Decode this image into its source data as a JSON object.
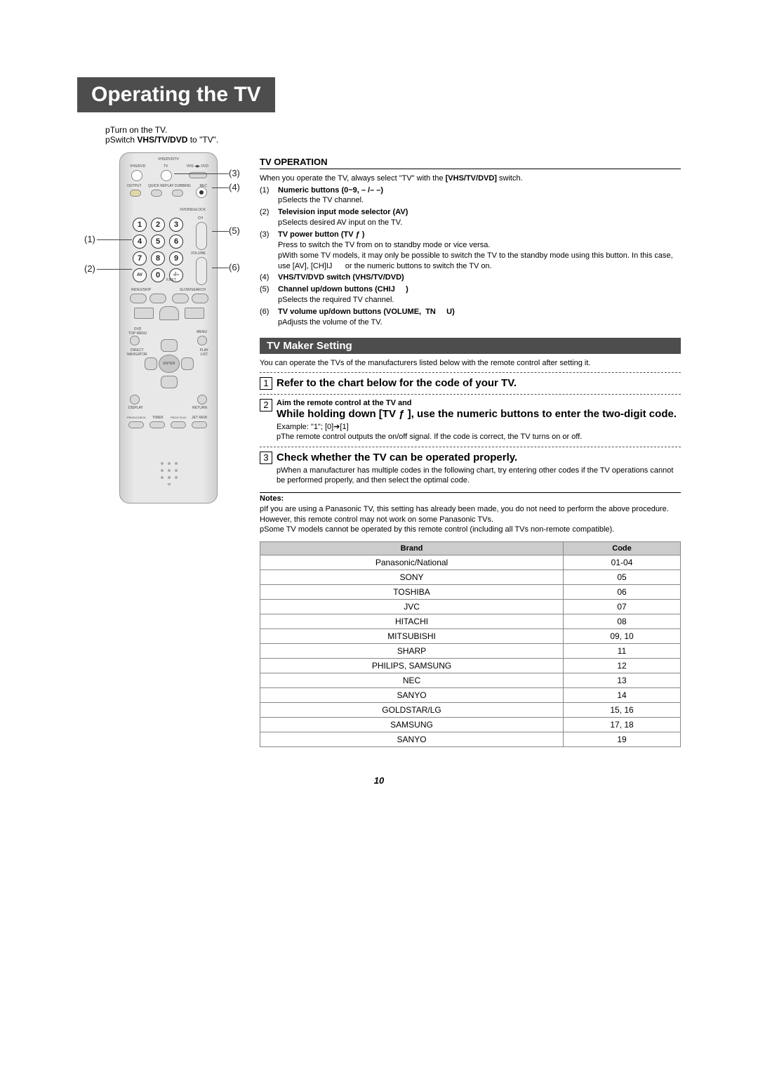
{
  "title": "Operating the TV",
  "intro": [
    "pTurn on the TV.",
    "pSwitch VHS/TV/DVD to \"TV\"."
  ],
  "introBold": "VHS/TV/DVD",
  "remote": {
    "topLabel": "VHS/DVD/TV",
    "vhsdvd": "VHS/DVD",
    "tv": "TV",
    "vhsdvd2": "VHS ◀▶ DVD",
    "output": "OUTPUT",
    "quick": "QUICK REPLAY",
    "dubbing": "DUBBING",
    "rec": "REC",
    "ch": "CH",
    "volume": "VOLUME",
    "fret": "F.RET",
    "vcrlock": "DVD/NDx/LOCK",
    "indexskip": "INDEX/SKIP",
    "slowsearch": "SLOW/SEARCH",
    "topmenu": "DVD\nTOP MENU",
    "menu": "MENU",
    "direct": "DIRECT\nNAVIGATOR",
    "playlist": "PLAY\nLIST",
    "enter": "ENTER",
    "display": "DISPLAY",
    "return": "RETURN",
    "progcheck": "PROG/CHECK",
    "timer": "TIMER",
    "progplay": "PROG PLAY",
    "jetrew": "JET REW",
    "keys": [
      "1",
      "2",
      "3",
      "4",
      "5",
      "6",
      "7",
      "8",
      "9",
      "AV",
      "0",
      "-/--"
    ]
  },
  "callouts": {
    "left1": "(1)",
    "left2": "(2)",
    "right3": "(3)",
    "right4": "(4)",
    "right5": "(5)",
    "right6": "(6)"
  },
  "tvOperation": {
    "heading": "TV OPERATION",
    "lead": "When you operate the TV, always select \"TV\" with the [VHS/TV/DVD] switch.",
    "items": [
      {
        "n": "(1)",
        "title": "Numeric buttons (0~9, – /– –)",
        "sub": "pSelects the TV channel."
      },
      {
        "n": "(2)",
        "title": "Television input mode selector (AV)",
        "sub": "pSelects desired AV input on the TV."
      },
      {
        "n": "(3)",
        "title": "TV power button (TV ƒ )",
        "sub": "  Press to switch the TV from on to standby mode or vice versa.",
        "extra": "pWith some TV models, it may only be possible to switch the TV to the standby mode using this button. In this case, use [AV], [CH]IJ      or the numeric buttons to switch the TV on."
      },
      {
        "n": "(4)",
        "title": "VHS/TV/DVD switch (VHS/TV/DVD)"
      },
      {
        "n": "(5)",
        "title": "Channel up/down buttons (CHIJ     )",
        "sub": "pSelects the required TV channel."
      },
      {
        "n": "(6)",
        "title": "TV volume up/down buttons (VOLUME,  TN     U)",
        "sub": "pAdjusts the volume of the TV."
      }
    ]
  },
  "maker": {
    "heading": "TV Maker Setting",
    "lead": "You can operate the TVs of the manufacturers listed below with the remote control after setting it.",
    "steps": [
      {
        "n": "1",
        "head": "Refer to the chart below for the code of your TV."
      },
      {
        "n": "2",
        "headSmall": "Aim the remote control at the TV and",
        "head2": "While holding down [TV ƒ ], use the numeric buttons to enter the two-digit code.",
        "body": "Example: \"1\"; [0]➔[1]",
        "body2": "pThe remote control outputs the on/off signal. If the code is correct, the TV turns on or off."
      },
      {
        "n": "3",
        "head": "Check whether the TV can be operated properly.",
        "body": "pWhen a manufacturer has multiple codes in the following chart, try entering other codes if the TV operations cannot be performed properly, and then select the optimal code."
      }
    ],
    "notesHead": "Notes:",
    "notes": [
      "pIf you are using a Panasonic TV, this setting has already been made, you do not need to perform the above procedure. However, this remote control may not work on some Panasonic TVs.",
      "pSome TV models cannot be operated by this remote control (including all TVs non-remote compatible)."
    ]
  },
  "table": {
    "columns": [
      "Brand",
      "Code"
    ],
    "rows": [
      [
        "Panasonic/National",
        "01-04"
      ],
      [
        "SONY",
        "05"
      ],
      [
        "TOSHIBA",
        "06"
      ],
      [
        "JVC",
        "07"
      ],
      [
        "HITACHI",
        "08"
      ],
      [
        "MITSUBISHI",
        "09, 10"
      ],
      [
        "SHARP",
        "11"
      ],
      [
        "PHILIPS, SAMSUNG",
        "12"
      ],
      [
        "NEC",
        "13"
      ],
      [
        "SANYO",
        "14"
      ],
      [
        "GOLDSTAR/LG",
        "15, 16"
      ],
      [
        "SAMSUNG",
        "17, 18"
      ],
      [
        "SANYO",
        "19"
      ]
    ]
  },
  "pageNumber": "10"
}
